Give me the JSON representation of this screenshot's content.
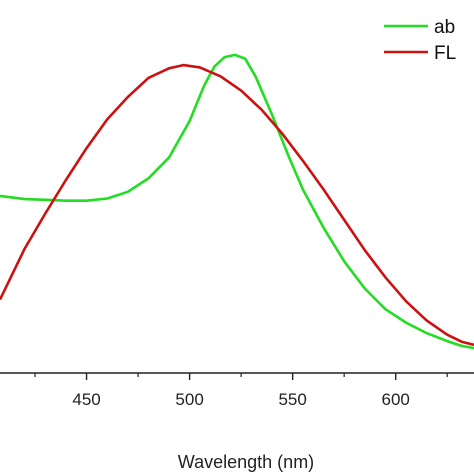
{
  "chart_data": {
    "type": "line",
    "title": "",
    "xlabel": "Wavelength (nm)",
    "ylabel": "",
    "xlim": [
      408,
      638
    ],
    "ylim": [
      0,
      1.05
    ],
    "x_ticks": [
      {
        "value": 450,
        "label": "450"
      },
      {
        "value": 500,
        "label": "500"
      },
      {
        "value": 550,
        "label": "550"
      },
      {
        "value": 600,
        "label": "600"
      }
    ],
    "grid": false,
    "legend_position": "top-right",
    "series": [
      {
        "name": "ab",
        "color": "#22dd22",
        "points": [
          [
            408,
            0.555
          ],
          [
            420,
            0.545
          ],
          [
            430,
            0.543
          ],
          [
            440,
            0.54
          ],
          [
            450,
            0.54
          ],
          [
            460,
            0.547
          ],
          [
            470,
            0.568
          ],
          [
            480,
            0.61
          ],
          [
            490,
            0.675
          ],
          [
            500,
            0.79
          ],
          [
            507,
            0.9
          ],
          [
            512,
            0.96
          ],
          [
            517,
            0.99
          ],
          [
            522,
            0.997
          ],
          [
            527,
            0.985
          ],
          [
            532,
            0.93
          ],
          [
            540,
            0.81
          ],
          [
            548,
            0.68
          ],
          [
            555,
            0.575
          ],
          [
            565,
            0.455
          ],
          [
            575,
            0.35
          ],
          [
            585,
            0.265
          ],
          [
            595,
            0.2
          ],
          [
            605,
            0.158
          ],
          [
            615,
            0.125
          ],
          [
            625,
            0.1
          ],
          [
            632,
            0.085
          ],
          [
            638,
            0.078
          ]
        ]
      },
      {
        "name": "FL",
        "color": "#cc1111",
        "points": [
          [
            408,
            0.23
          ],
          [
            420,
            0.39
          ],
          [
            430,
            0.5
          ],
          [
            440,
            0.605
          ],
          [
            450,
            0.705
          ],
          [
            460,
            0.795
          ],
          [
            470,
            0.865
          ],
          [
            480,
            0.925
          ],
          [
            490,
            0.955
          ],
          [
            497,
            0.965
          ],
          [
            505,
            0.958
          ],
          [
            515,
            0.93
          ],
          [
            525,
            0.885
          ],
          [
            535,
            0.825
          ],
          [
            545,
            0.75
          ],
          [
            555,
            0.665
          ],
          [
            565,
            0.575
          ],
          [
            575,
            0.48
          ],
          [
            585,
            0.385
          ],
          [
            595,
            0.3
          ],
          [
            605,
            0.225
          ],
          [
            615,
            0.165
          ],
          [
            625,
            0.12
          ],
          [
            632,
            0.098
          ],
          [
            638,
            0.088
          ]
        ]
      }
    ]
  }
}
